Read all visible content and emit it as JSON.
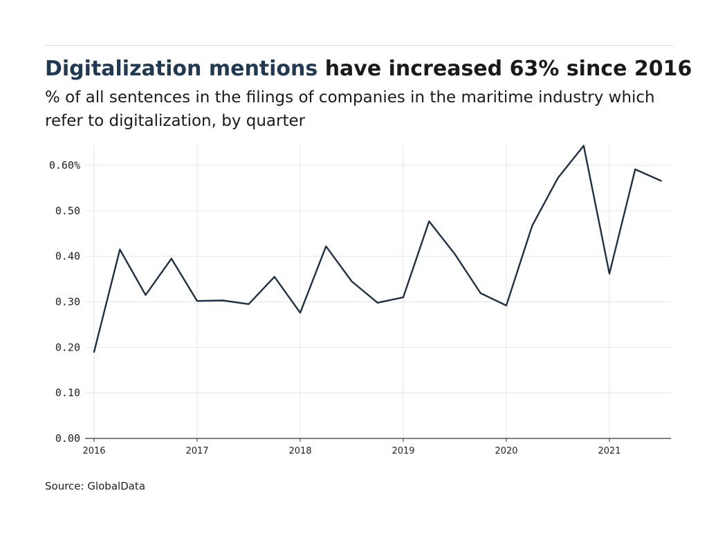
{
  "header": {
    "title_highlight": "Digitalization mentions",
    "title_rest": " have increased 63% since 2016",
    "subtitle": "% of all sentences in the filings of companies in the maritime industry which refer to digitalization, by quarter"
  },
  "footer": {
    "source": "Source: GlobalData"
  },
  "colors": {
    "title_highlight": "#1f3a52",
    "line": "#1e3044",
    "grid": "#e6e6e6",
    "axis": "#333333"
  },
  "chart_data": {
    "type": "line",
    "title": "Digitalization mentions have increased 63% since 2016",
    "subtitle": "% of all sentences in the filings of companies in the maritime industry which refer to digitalization, by quarter",
    "xlabel": "",
    "ylabel": "",
    "x": [
      2016.0,
      2016.25,
      2016.5,
      2016.75,
      2017.0,
      2017.25,
      2017.5,
      2017.75,
      2018.0,
      2018.25,
      2018.5,
      2018.75,
      2019.0,
      2019.25,
      2019.5,
      2019.75,
      2020.0,
      2020.25,
      2020.5,
      2020.75,
      2021.0,
      2021.25,
      2021.5
    ],
    "series": [
      {
        "values": [
          0.19,
          0.415,
          0.315,
          0.395,
          0.302,
          0.303,
          0.295,
          0.355,
          0.276,
          0.422,
          0.345,
          0.298,
          0.31,
          0.477,
          0.405,
          0.319,
          0.292,
          0.467,
          0.572,
          0.643,
          0.362,
          0.591,
          0.566
        ]
      }
    ],
    "xlim": [
      2015.99,
      2021.6
    ],
    "ylim": [
      0,
      0.645
    ],
    "x_ticks": [
      2016,
      2017,
      2018,
      2019,
      2020,
      2021
    ],
    "x_tick_labels": [
      "2016",
      "2017",
      "2018",
      "2019",
      "2020",
      "2021"
    ],
    "y_ticks": [
      0,
      0.1,
      0.2,
      0.3,
      0.4,
      0.5,
      0.6
    ],
    "y_tick_labels": [
      "0.00",
      "0.10",
      "0.20",
      "0.30",
      "0.40",
      "0.50",
      "0.60%"
    ],
    "grid": true,
    "legend": "none"
  }
}
